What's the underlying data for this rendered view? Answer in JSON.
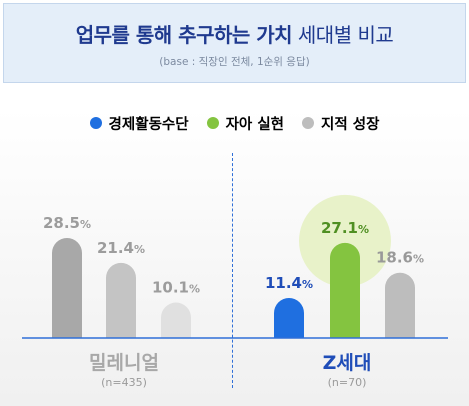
{
  "header": {
    "title_bold_1": "업무를 통해 ",
    "title_bold_2": "추구하는 가치",
    "title_normal": " 세대별 비교",
    "subtitle": "(base : 직장인 전체, 1순위 응답)"
  },
  "legend": [
    {
      "label": "경제활동수단",
      "color": "#1f6fe0"
    },
    {
      "label": "자아 실현",
      "color": "#84c440"
    },
    {
      "label": "지적 성장",
      "color": "#bdbdbd"
    }
  ],
  "colors": {
    "millennial": [
      "#a8a8a8",
      "#c4c4c4",
      "#e0e0e0"
    ],
    "genz": [
      "#1f6fe0",
      "#84c440",
      "#bdbdbd"
    ],
    "genz_highlight": "#e8f2c9",
    "label_grey": "#9c9c9c",
    "label_blue": "#1f4db8",
    "label_green": "#4f8f22",
    "label_darkgrey": "#999999",
    "axis": "#2f6fd8"
  },
  "groups": {
    "millennial": {
      "name": "밀레니얼",
      "n": "(n=435)",
      "name_color": "#a8a8a8"
    },
    "genz": {
      "name": "Z세대",
      "n": "(n=70)",
      "name_color": "#1f4db8"
    }
  },
  "chart_data": {
    "type": "bar",
    "categories": [
      "밀레니얼",
      "Z세대"
    ],
    "series": [
      {
        "name": "경제활동수단",
        "values": [
          28.5,
          11.4
        ]
      },
      {
        "name": "자아 실현",
        "values": [
          21.4,
          27.1
        ]
      },
      {
        "name": "지적 성장",
        "values": [
          10.1,
          18.6
        ]
      }
    ],
    "value_labels": [
      [
        "28.5%",
        "21.4%",
        "10.1%"
      ],
      [
        "11.4%",
        "27.1%",
        "18.6%"
      ]
    ],
    "unit": "%",
    "ylim": [
      0,
      30
    ],
    "grid": false,
    "legend_position": "top"
  }
}
